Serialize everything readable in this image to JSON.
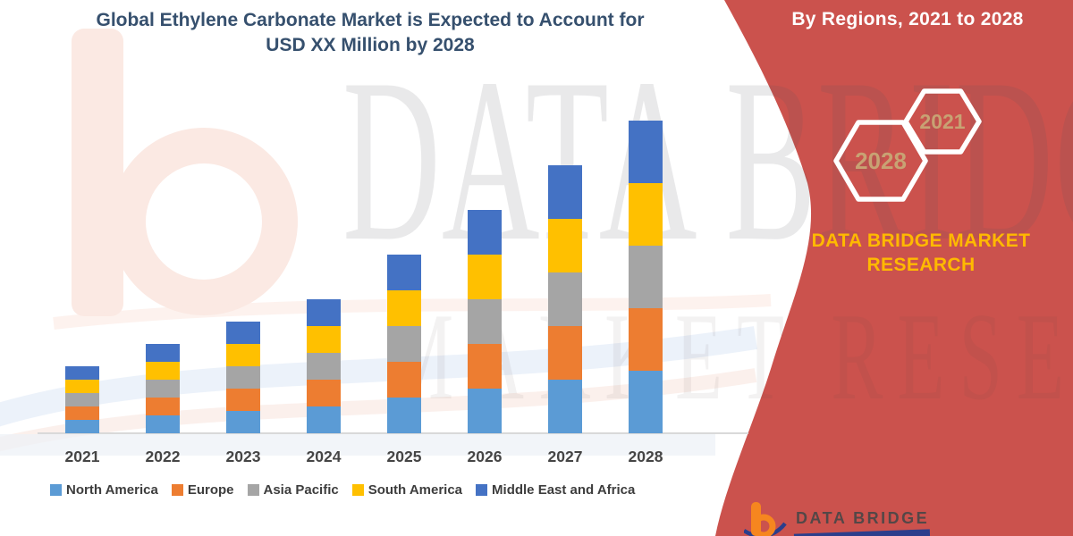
{
  "title": {
    "line1": "Global Ethylene Carbonate Market is Expected to Account for",
    "line2": "USD XX Million by 2028"
  },
  "side_panel": {
    "heading": "By Regions, 2021 to 2028",
    "hexagon_large_label": "2028",
    "hexagon_small_label": "2021",
    "brand_line1": "DATA BRIDGE MARKET",
    "brand_line2": "RESEARCH",
    "footer_brand": "DATA BRIDGE",
    "bg_color": "#CB524D",
    "heading_color": "#FFFFFF",
    "brand_color": "#FFB900",
    "hexagon_label_color": "#C8A273"
  },
  "watermark": {
    "big_text": "DATA BRIDGE",
    "sub_text": "MARKET RESEARCH"
  },
  "chart_data": {
    "type": "bar",
    "stacked": true,
    "title": "Global Ethylene Carbonate Market is Expected to Account for USD XX Million by 2028",
    "xlabel": "",
    "ylabel": "",
    "categories": [
      "2021",
      "2022",
      "2023",
      "2024",
      "2025",
      "2026",
      "2027",
      "2028"
    ],
    "series": [
      {
        "name": "North America",
        "color": "#5B9BD5",
        "values": [
          15,
          20,
          25,
          30,
          40,
          50,
          60,
          70
        ]
      },
      {
        "name": "Europe",
        "color": "#ED7D31",
        "values": [
          15,
          20,
          25,
          30,
          40,
          50,
          60,
          70
        ]
      },
      {
        "name": "Asia Pacific",
        "color": "#A5A5A5",
        "values": [
          15,
          20,
          25,
          30,
          40,
          50,
          60,
          70
        ]
      },
      {
        "name": "South America",
        "color": "#FFC000",
        "values": [
          15,
          20,
          25,
          30,
          40,
          50,
          60,
          70
        ]
      },
      {
        "name": "Middle East and Africa",
        "color": "#4472C4",
        "values": [
          15,
          20,
          25,
          30,
          40,
          50,
          60,
          70
        ]
      }
    ],
    "ylim": [
      0,
      360
    ],
    "y_axis_labeled": false,
    "value_scale": "relative units (no y-axis tick labels shown; values USD XX Million placeholder)",
    "grid": false,
    "legend_position": "bottom"
  }
}
